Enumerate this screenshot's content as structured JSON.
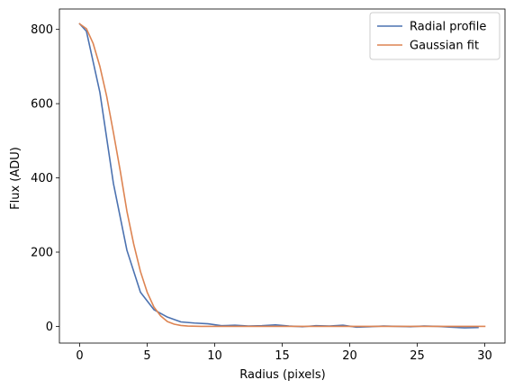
{
  "chart_data": {
    "type": "line",
    "title": "",
    "xlabel": "Radius (pixels)",
    "ylabel": "Flux (ADU)",
    "xlim": [
      -1.5,
      31.5
    ],
    "ylim": [
      -45,
      855
    ],
    "xticks": [
      0,
      5,
      10,
      15,
      20,
      25,
      30
    ],
    "yticks": [
      0,
      200,
      400,
      600,
      800
    ],
    "grid": false,
    "legend_position": "top-right",
    "series": [
      {
        "name": "Radial profile",
        "color": "#4c72b0",
        "x": [
          0.0,
          0.5,
          1.5,
          2.5,
          3.5,
          4.5,
          5.5,
          6.5,
          7.5,
          8.5,
          9.5,
          10.5,
          11.5,
          12.5,
          13.5,
          14.5,
          15.5,
          16.5,
          17.5,
          18.5,
          19.5,
          20.5,
          21.5,
          22.5,
          23.5,
          24.5,
          25.5,
          26.5,
          27.5,
          28.5,
          29.5
        ],
        "y": [
          815,
          795,
          630,
          385,
          205,
          92,
          45,
          25,
          12,
          9,
          7,
          2,
          3,
          1,
          2,
          4,
          1,
          -1,
          2,
          1,
          3,
          -2,
          -1,
          1,
          0,
          -1,
          1,
          0,
          -2,
          -4,
          -3
        ]
      },
      {
        "name": "Gaussian fit",
        "color": "#dd8452",
        "x": [
          0.0,
          0.5,
          1.0,
          1.5,
          2.0,
          2.5,
          3.0,
          3.5,
          4.0,
          4.5,
          5.0,
          5.5,
          6.0,
          6.5,
          7.0,
          7.5,
          8.0,
          9.0,
          10.0,
          12.0,
          15.0,
          20.0,
          25.0,
          30.0
        ],
        "y": [
          815,
          802,
          762,
          700,
          620,
          522,
          420,
          310,
          222,
          148,
          92,
          52,
          28,
          13,
          6,
          2.5,
          1,
          0,
          0,
          0,
          0,
          0,
          0,
          0
        ]
      }
    ]
  }
}
